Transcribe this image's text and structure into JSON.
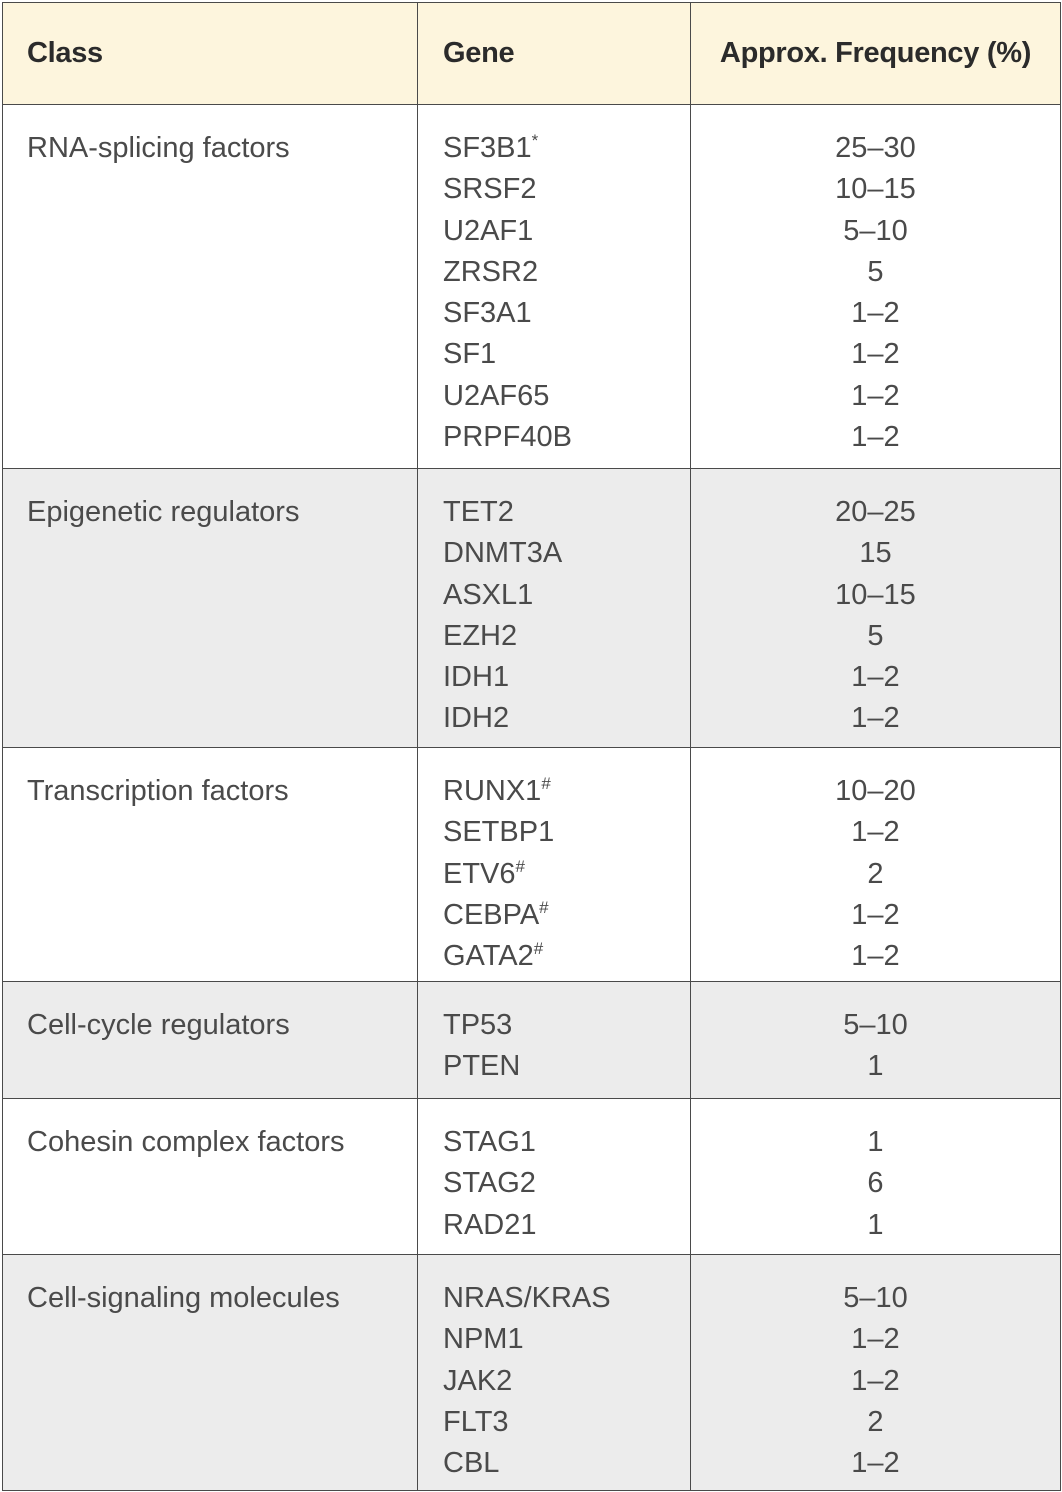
{
  "headers": {
    "class": "Class",
    "gene": "Gene",
    "frequency": "Approx. Frequency (%)"
  },
  "groups": [
    {
      "class": "RNA-splicing factors",
      "genes": [
        {
          "name": "SF3B1",
          "mark": "*",
          "freq": "25–30"
        },
        {
          "name": "SRSF2",
          "mark": "",
          "freq": "10–15"
        },
        {
          "name": "U2AF1",
          "mark": "",
          "freq": "5–10"
        },
        {
          "name": "ZRSR2",
          "mark": "",
          "freq": "5"
        },
        {
          "name": "SF3A1",
          "mark": "",
          "freq": "1–2"
        },
        {
          "name": "SF1",
          "mark": "",
          "freq": "1–2"
        },
        {
          "name": "U2AF65",
          "mark": "",
          "freq": "1–2"
        },
        {
          "name": "PRPF40B",
          "mark": "",
          "freq": "1–2"
        }
      ]
    },
    {
      "class": "Epigenetic regulators",
      "genes": [
        {
          "name": "TET2",
          "mark": "",
          "freq": "20–25"
        },
        {
          "name": "DNMT3A",
          "mark": "",
          "freq": "15"
        },
        {
          "name": "ASXL1",
          "mark": "",
          "freq": "10–15"
        },
        {
          "name": "EZH2",
          "mark": "",
          "freq": "5"
        },
        {
          "name": "IDH1",
          "mark": "",
          "freq": "1–2"
        },
        {
          "name": "IDH2",
          "mark": "",
          "freq": "1–2"
        }
      ]
    },
    {
      "class": "Transcription factors",
      "genes": [
        {
          "name": "RUNX1",
          "mark": "#",
          "freq": "10–20"
        },
        {
          "name": "SETBP1",
          "mark": "",
          "freq": "1–2"
        },
        {
          "name": "ETV6",
          "mark": "#",
          "freq": "2"
        },
        {
          "name": "CEBPA",
          "mark": "#",
          "freq": "1–2"
        },
        {
          "name": "GATA2",
          "mark": "#",
          "freq": "1–2"
        }
      ]
    },
    {
      "class": "Cell-cycle regulators",
      "genes": [
        {
          "name": "TP53",
          "mark": "",
          "freq": "5–10"
        },
        {
          "name": "PTEN",
          "mark": "",
          "freq": "1"
        }
      ]
    },
    {
      "class": "Cohesin complex factors",
      "genes": [
        {
          "name": "STAG1",
          "mark": "",
          "freq": "1"
        },
        {
          "name": "STAG2",
          "mark": "",
          "freq": "6"
        },
        {
          "name": "RAD21",
          "mark": "",
          "freq": "1"
        }
      ]
    },
    {
      "class": "Cell-signaling molecules",
      "genes": [
        {
          "name": "NRAS/KRAS",
          "mark": "",
          "freq": "5–10"
        },
        {
          "name": "NPM1",
          "mark": "",
          "freq": "1–2"
        },
        {
          "name": "JAK2",
          "mark": "",
          "freq": "1–2"
        },
        {
          "name": "FLT3",
          "mark": "",
          "freq": "2"
        },
        {
          "name": "CBL",
          "mark": "",
          "freq": "1–2"
        }
      ]
    }
  ]
}
